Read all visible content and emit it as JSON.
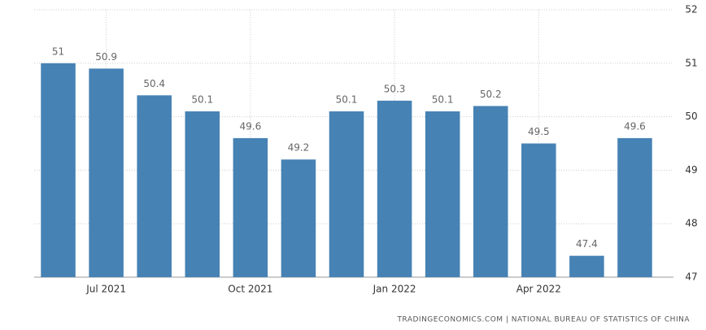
{
  "chart_data": {
    "type": "bar",
    "categories": [
      null,
      "Jul 2021",
      null,
      null,
      "Oct 2021",
      null,
      null,
      "Jan 2022",
      null,
      null,
      "Apr 2022",
      null,
      null
    ],
    "values": [
      51,
      50.9,
      50.4,
      50.1,
      49.6,
      49.2,
      50.1,
      50.3,
      50.1,
      50.2,
      49.5,
      47.4,
      49.6
    ],
    "color": "#4682b4",
    "ylim": [
      47,
      52
    ],
    "yticks": [
      47,
      48,
      49,
      50,
      51,
      52
    ],
    "grid": true,
    "source": "TRADINGECONOMICS.COM | NATIONAL BUREAU OF STATISTICS OF CHINA"
  }
}
